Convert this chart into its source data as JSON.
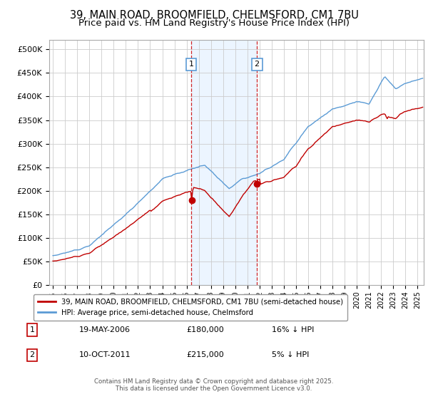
{
  "title": "39, MAIN ROAD, BROOMFIELD, CHELMSFORD, CM1 7BU",
  "subtitle": "Price paid vs. HM Land Registry's House Price Index (HPI)",
  "ylim": [
    0,
    520000
  ],
  "yticks": [
    0,
    50000,
    100000,
    150000,
    200000,
    250000,
    300000,
    350000,
    400000,
    450000,
    500000
  ],
  "ytick_labels": [
    "£0",
    "£50K",
    "£100K",
    "£150K",
    "£200K",
    "£250K",
    "£300K",
    "£350K",
    "£400K",
    "£450K",
    "£500K"
  ],
  "hpi_color": "#5b9bd5",
  "price_color": "#c00000",
  "sale1_date": "19-MAY-2006",
  "sale1_price": 180000,
  "sale1_hpi_diff": "16% ↓ HPI",
  "sale2_date": "10-OCT-2011",
  "sale2_price": 215000,
  "sale2_hpi_diff": "5% ↓ HPI",
  "legend_label1": "39, MAIN ROAD, BROOMFIELD, CHELMSFORD, CM1 7BU (semi-detached house)",
  "legend_label2": "HPI: Average price, semi-detached house, Chelmsford",
  "footer": "Contains HM Land Registry data © Crown copyright and database right 2025.\nThis data is licensed under the Open Government Licence v3.0.",
  "sale1_x": 2006.38,
  "sale2_x": 2011.78,
  "vline_color": "#cc0000",
  "shade_color": "#ddeeff",
  "background_color": "#ffffff",
  "grid_color": "#cccccc",
  "title_fontsize": 10.5,
  "subtitle_fontsize": 9.5,
  "numbered_box_color": "#5b9bd5"
}
